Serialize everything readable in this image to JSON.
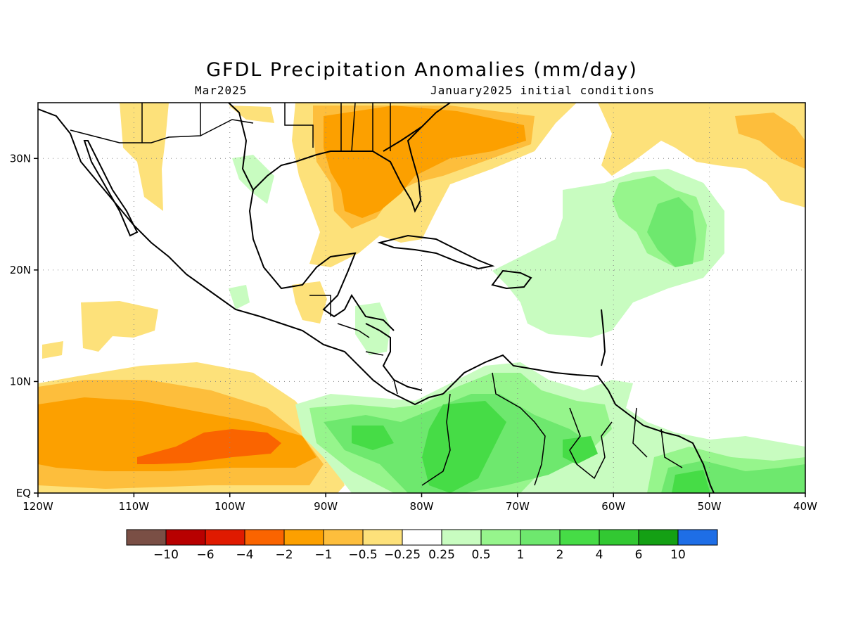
{
  "title": "GFDL Precipitation Anomalies (mm/day)",
  "subtitle_left": "Mar2025",
  "subtitle_right": "January2025 initial conditions",
  "map": {
    "lon_range": [
      -120,
      -40
    ],
    "lat_range": [
      0,
      35
    ],
    "lon_ticks": [
      {
        "value": -120,
        "label": "120W"
      },
      {
        "value": -110,
        "label": "110W"
      },
      {
        "value": -100,
        "label": "100W"
      },
      {
        "value": -90,
        "label": "90W"
      },
      {
        "value": -80,
        "label": "80W"
      },
      {
        "value": -70,
        "label": "70W"
      },
      {
        "value": -60,
        "label": "60W"
      },
      {
        "value": -50,
        "label": "50W"
      },
      {
        "value": -40,
        "label": "40W"
      }
    ],
    "lat_ticks": [
      {
        "value": 0,
        "label": "EQ"
      },
      {
        "value": 10,
        "label": "10N"
      },
      {
        "value": 20,
        "label": "20N"
      },
      {
        "value": 30,
        "label": "30N"
      }
    ],
    "grid": true
  },
  "colorbar": {
    "colors": [
      "#7a4f45",
      "#b80000",
      "#e01a00",
      "#fa6400",
      "#fca000",
      "#fdbe3c",
      "#fde17a",
      "#ffffff",
      "#c8fcc0",
      "#96f58c",
      "#6ee86e",
      "#46dc46",
      "#32c832",
      "#14a014",
      "#1e6ee6"
    ],
    "labels": [
      "−10",
      "−6",
      "−4",
      "−2",
      "−1",
      "−0.5",
      "−0.25",
      "0.25",
      "0.5",
      "1",
      "2",
      "4",
      "6",
      "10"
    ]
  },
  "colors": {
    "dry_light": "#fde17a",
    "dry_mid": "#fdbe3c",
    "dry_strong": "#fca000",
    "dry_very_strong": "#fa6400",
    "wet_light": "#c8fcc0",
    "wet_mid": "#96f58c",
    "wet_strong": "#6ee86e",
    "wet_very_strong": "#46dc46",
    "wet_extreme": "#32c832"
  }
}
